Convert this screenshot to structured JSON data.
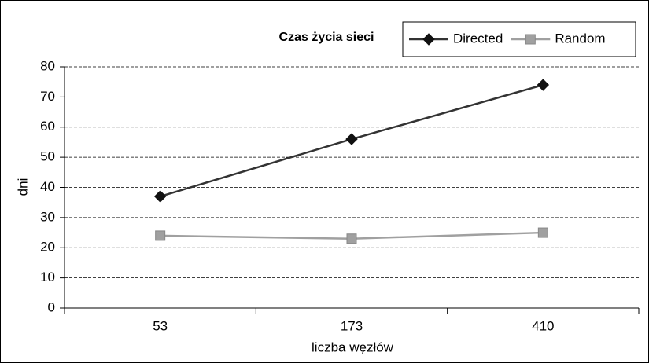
{
  "chart_data": {
    "type": "line",
    "title": "Czas życia sieci",
    "x_label": "liczba węzłów",
    "y_label": "dni",
    "categories": [
      "53",
      "173",
      "410"
    ],
    "series": [
      {
        "name": "Directed",
        "color": "#333333",
        "marker": "diamond",
        "values": [
          37,
          56,
          74
        ]
      },
      {
        "name": "Random",
        "color": "#a0a0a0",
        "marker": "square",
        "values": [
          24,
          23,
          25
        ]
      }
    ],
    "ylim": [
      0,
      80
    ],
    "yticks": [
      0,
      10,
      20,
      30,
      40,
      50,
      60,
      70,
      80
    ],
    "grid": true,
    "legend": "top-right"
  }
}
